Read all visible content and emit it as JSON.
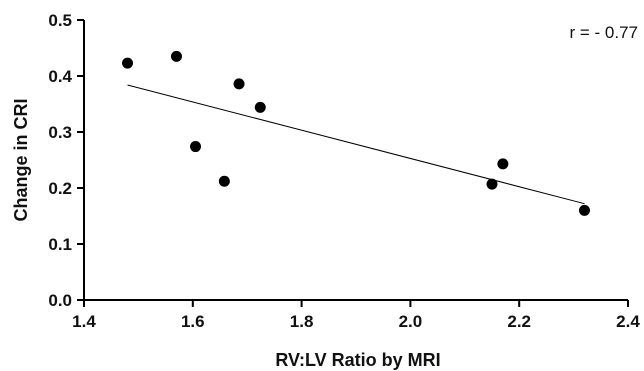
{
  "chart_data": {
    "type": "scatter",
    "title": "",
    "xlabel": "RV:LV Ratio by MRI",
    "ylabel": "Change in CRI",
    "xlim": [
      1.4,
      2.4
    ],
    "ylim": [
      0.0,
      0.5
    ],
    "xticks": [
      "1.4",
      "1.6",
      "1.8",
      "2.0",
      "2.2",
      "2.4"
    ],
    "yticks": [
      "0.0",
      "0.1",
      "0.2",
      "0.3",
      "0.4",
      "0.5"
    ],
    "grid": false,
    "legend": "none",
    "annotation": "r = - 0.77",
    "series": [
      {
        "x": [
          1.48,
          1.57,
          1.605,
          1.658,
          1.685,
          1.724,
          2.15,
          2.17,
          2.32
        ],
        "y": [
          0.423,
          0.435,
          0.274,
          0.212,
          0.386,
          0.344,
          0.207,
          0.243,
          0.16
        ],
        "marker": "circle",
        "color": "#000000"
      }
    ],
    "trendline": {
      "x": [
        1.48,
        2.32
      ],
      "y": [
        0.384,
        0.172
      ],
      "color": "#000000"
    }
  }
}
